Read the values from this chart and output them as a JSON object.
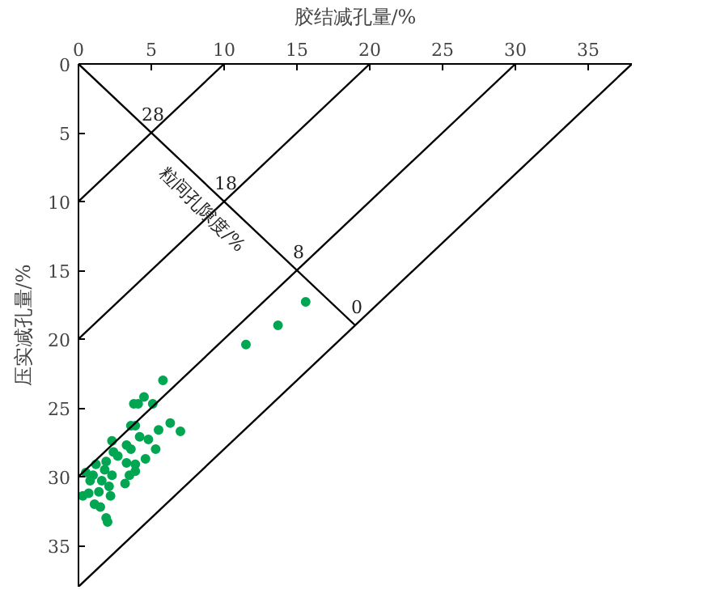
{
  "chart_data": {
    "type": "scatter",
    "xlabel": "胶结减孔量/%",
    "ylabel": "压实减孔量/%",
    "xlim": [
      0,
      38
    ],
    "ylim": [
      38,
      0
    ],
    "xticks": [
      0,
      5,
      10,
      15,
      20,
      25,
      30,
      35
    ],
    "yticks": [
      0,
      5,
      10,
      15,
      20,
      25,
      30,
      35
    ],
    "grid": false,
    "series": [
      {
        "marker": "circle",
        "color": "#00a651",
        "x": [
          15.6,
          13.7,
          11.5,
          5.8,
          4.5,
          3.8,
          4.1,
          5.1,
          6.3,
          7.0,
          5.5,
          3.9,
          3.6,
          4.8,
          5.3,
          4.6,
          2.3,
          3.3,
          3.6,
          2.4,
          2.7,
          3.3,
          3.9,
          3.9,
          1.9,
          1.8,
          2.3,
          1.2,
          1.0,
          0.5,
          0.8,
          1.6,
          3.2,
          2.1,
          1.4,
          0.7,
          0.3,
          2.2,
          1.1,
          1.5,
          1.9,
          2.0,
          3.5,
          4.2
        ],
        "values": [
          17.3,
          19.0,
          20.4,
          23.0,
          24.2,
          24.7,
          24.7,
          24.7,
          26.1,
          26.7,
          26.6,
          26.3,
          26.3,
          27.3,
          28.0,
          28.7,
          27.4,
          27.7,
          28.0,
          28.2,
          28.5,
          29.0,
          29.1,
          29.6,
          28.9,
          29.5,
          29.9,
          29.1,
          29.9,
          29.7,
          30.3,
          30.3,
          30.5,
          30.7,
          31.1,
          31.2,
          31.4,
          31.4,
          32.0,
          32.2,
          33.0,
          33.3,
          29.9,
          27.1
        ]
      },
      {
        "type": "line",
        "color": "#000000",
        "x": [
          0,
          10
        ],
        "values": [
          10,
          0
        ]
      },
      {
        "type": "line",
        "color": "#000000",
        "x": [
          0,
          20
        ],
        "values": [
          20,
          0
        ]
      },
      {
        "type": "line",
        "color": "#000000",
        "x": [
          0,
          30
        ],
        "values": [
          30,
          0
        ]
      },
      {
        "type": "line",
        "color": "#000000",
        "x": [
          0,
          38
        ],
        "values": [
          38,
          0
        ]
      },
      {
        "type": "line",
        "color": "#000000",
        "x": [
          0,
          19
        ],
        "values": [
          0,
          19
        ]
      }
    ],
    "annotations": [
      {
        "text": "28",
        "x": 5,
        "y": 5
      },
      {
        "text": "18",
        "x": 10,
        "y": 10
      },
      {
        "text": "8",
        "x": 15,
        "y": 15
      },
      {
        "text": "0",
        "x": 19,
        "y": 19
      },
      {
        "text": "粒间孔隙度/%",
        "x": 9.5,
        "y": 9.5
      }
    ]
  }
}
